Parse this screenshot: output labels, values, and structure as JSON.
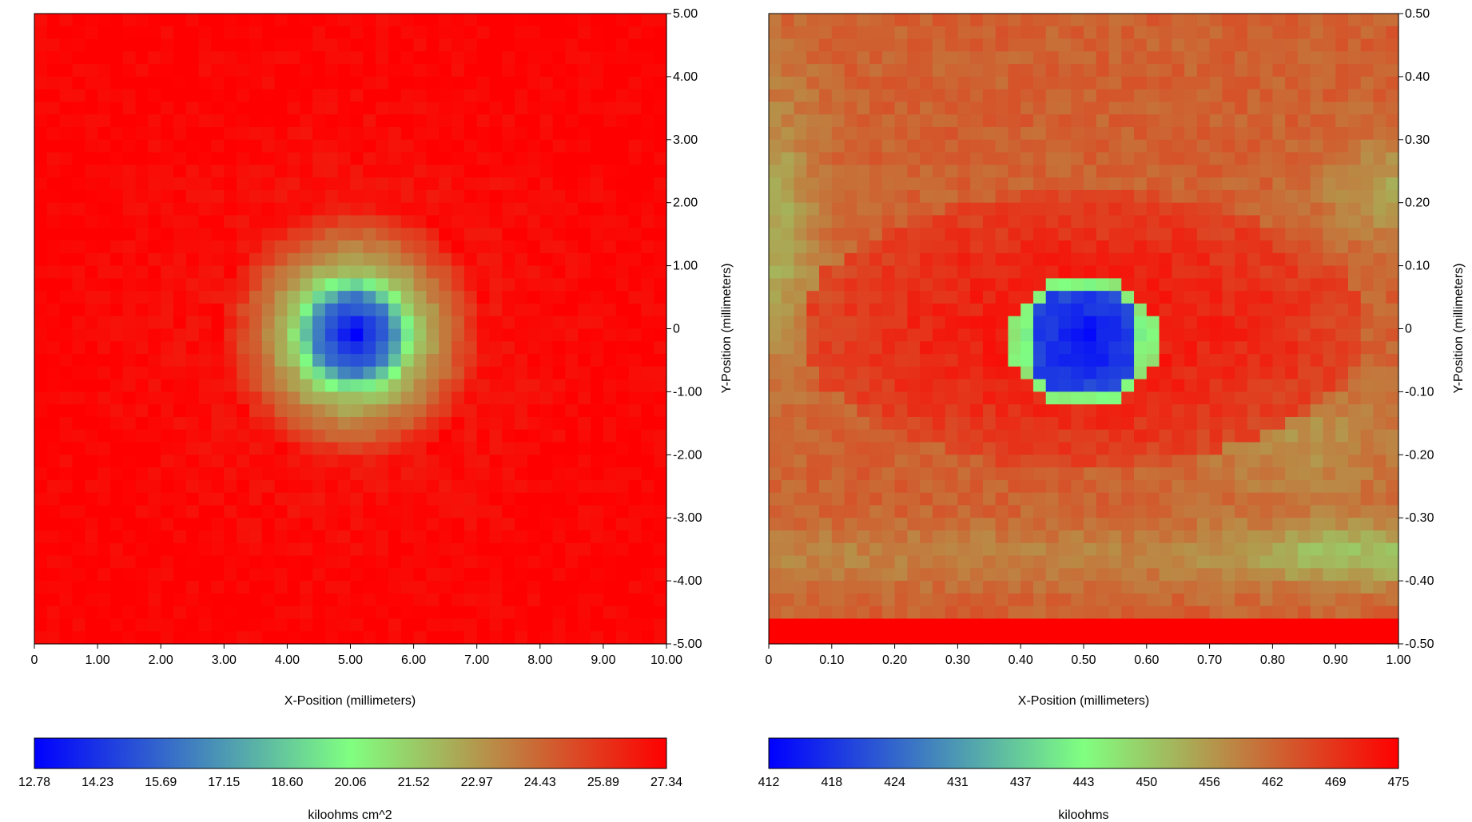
{
  "colors": {
    "low": "#0000ff",
    "mid": "#80ff80",
    "high": "#ff0000",
    "axis": "#000000",
    "background": "#ffffff"
  },
  "chart_data": [
    {
      "type": "heatmap",
      "title": "",
      "xlabel": "X-Position (millimeters)",
      "ylabel": "Y-Position (millimeters)",
      "xlim": [
        0,
        10
      ],
      "ylim": [
        -5,
        5
      ],
      "xticks": [
        "0",
        "1.00",
        "2.00",
        "3.00",
        "4.00",
        "5.00",
        "6.00",
        "7.00",
        "8.00",
        "9.00",
        "10.00"
      ],
      "yticks": [
        "5.00",
        "4.00",
        "3.00",
        "2.00",
        "1.00",
        "0",
        "-1.00",
        "-2.00",
        "-3.00",
        "-4.00",
        "-5.00"
      ],
      "grid": false,
      "colorbar": {
        "label": "kiloohms cm^2",
        "min": 12.78,
        "max": 27.34,
        "ticks": [
          "12.78",
          "14.23",
          "15.69",
          "17.15",
          "18.60",
          "20.06",
          "21.52",
          "22.97",
          "24.43",
          "25.89",
          "27.34"
        ]
      },
      "grid_size": [
        50,
        50
      ],
      "features": {
        "background_value": 27.34,
        "spot": {
          "x": 5.05,
          "y": -0.1,
          "min_value": 12.78,
          "core_radius": 0.6,
          "ring_radius": 1.0,
          "halo_radius": 2.2
        }
      }
    },
    {
      "type": "heatmap",
      "title": "",
      "xlabel": "X-Position (millimeters)",
      "ylabel": "Y-Position (millimeters)",
      "xlim": [
        0,
        1
      ],
      "ylim": [
        -0.5,
        0.5
      ],
      "xticks": [
        "0",
        "0.10",
        "0.20",
        "0.30",
        "0.40",
        "0.50",
        "0.60",
        "0.70",
        "0.80",
        "0.90",
        "1.00"
      ],
      "yticks": [
        "0.50",
        "0.40",
        "0.30",
        "0.20",
        "0.10",
        "0",
        "-0.10",
        "-0.20",
        "-0.30",
        "-0.40",
        "-0.50"
      ],
      "grid": false,
      "colorbar": {
        "label": "kiloohms",
        "min": 412,
        "max": 475,
        "ticks": [
          "412",
          "418",
          "424",
          "431",
          "437",
          "443",
          "450",
          "456",
          "462",
          "469",
          "475"
        ]
      },
      "grid_size": [
        50,
        50
      ],
      "features": {
        "background_value": 463,
        "spot": {
          "x": 0.5,
          "y": -0.02,
          "min_value": 413,
          "core_radius": 0.09,
          "ring_radius": 0.115
        },
        "red_eye_region": {
          "cx": 0.5,
          "cy": 0.0,
          "rx": 0.45,
          "ry": 0.22,
          "value": 472
        },
        "green_band": {
          "y": -0.36,
          "value": 446
        },
        "red_bottom_strip": {
          "y_from": -0.5,
          "y_to": -0.45,
          "value": 475
        }
      }
    }
  ]
}
